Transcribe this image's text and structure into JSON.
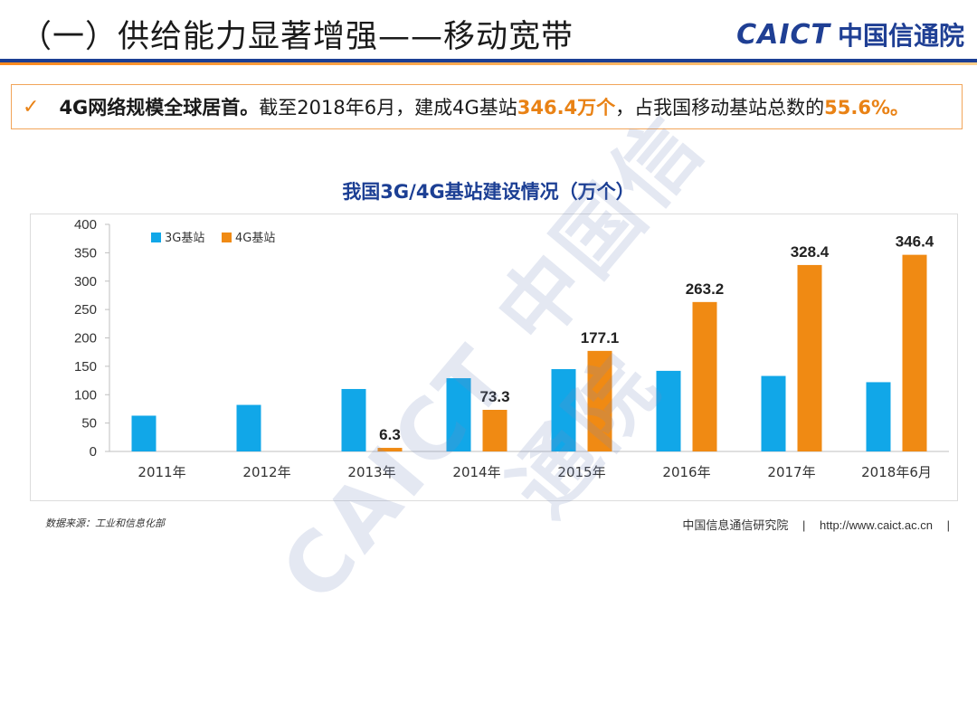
{
  "header": {
    "title": "（一）供给能力显著增强——移动宽带",
    "logo_en": "CAICT",
    "logo_cn": "中国信通院"
  },
  "callout": {
    "check": "✓",
    "bold_text": "4G网络规模全球居首。",
    "text1": "截至2018年6月，建成4G基站",
    "highlight1": "346.4万个",
    "text2": "，占我国移动基站总数的",
    "highlight2": "55.6%。"
  },
  "watermark": "CAICT 中国信通院",
  "footer": {
    "source": "数据来源：工业和信息化部",
    "org": "中国信息通信研究院",
    "sep": "|",
    "url": "http://www.caict.ac.cn",
    "sep2": "|"
  },
  "colors": {
    "series_3g": "#11a7e8",
    "series_4g": "#f08a13",
    "title_blue": "#1c3f94"
  },
  "chart_data": {
    "type": "bar",
    "title": "我国3G/4G基站建设情况（万个）",
    "categories": [
      "2011年",
      "2012年",
      "2013年",
      "2014年",
      "2015年",
      "2016年",
      "2017年",
      "2018年6月"
    ],
    "series": [
      {
        "name": "3G基站",
        "values": [
          63,
          82,
          110,
          129,
          145,
          142,
          133,
          122
        ]
      },
      {
        "name": "4G基站",
        "values": [
          null,
          null,
          6.3,
          73.3,
          177.1,
          263.2,
          328.4,
          346.4
        ],
        "labels": [
          "",
          "",
          "6.3",
          "73.3",
          "177.1",
          "263.2",
          "328.4",
          "346.4"
        ]
      }
    ],
    "yticks": [
      "0",
      "50",
      "100",
      "150",
      "200",
      "250",
      "300",
      "350",
      "400"
    ],
    "ylim": [
      0,
      400
    ],
    "legend_position": "top-left",
    "grid": false
  }
}
